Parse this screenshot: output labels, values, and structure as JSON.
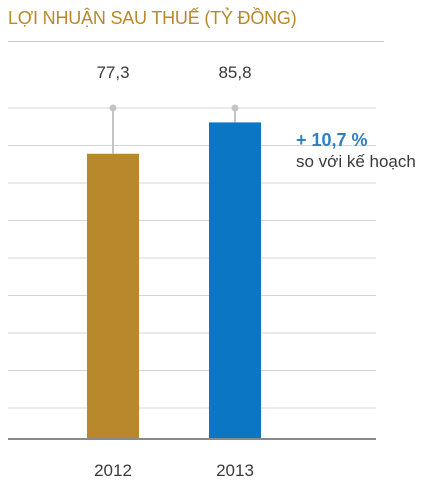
{
  "title": "LỢI NHUẬN SAU THUẾ (TỶ ĐỒNG)",
  "annotation": {
    "percent": "+ 10,7 %",
    "note": "so với kế hoạch",
    "color": "#2f7fc1"
  },
  "chart_data": {
    "type": "bar",
    "title": "LỢI NHUẬN SAU THUẾ (TỶ ĐỒNG)",
    "xlabel": "",
    "ylabel": "",
    "categories": [
      "2012",
      "2013"
    ],
    "values": [
      77.3,
      85.8
    ],
    "value_labels": [
      "77,3",
      "85,8"
    ],
    "colors": [
      "#b8892c",
      "#0a76c4"
    ],
    "ylim": [
      0,
      100
    ],
    "grid": true,
    "legend": "none"
  }
}
